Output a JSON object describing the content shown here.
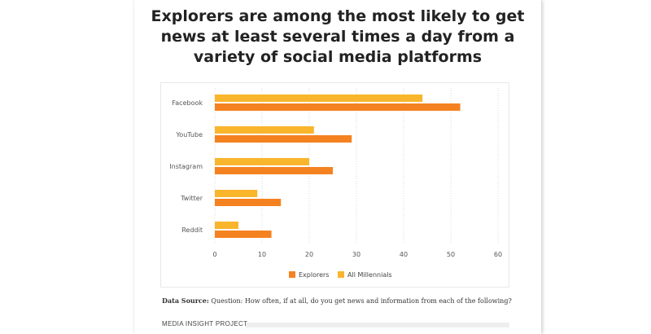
{
  "title_lines": [
    "Explorers are among the most likely to get",
    "news at least several times a day from a",
    "variety of social media platforms"
  ],
  "chart_data": {
    "type": "bar",
    "orientation": "horizontal",
    "title": "Explorers are among the most likely to get news at least several times a day from a variety of social media platforms",
    "categories": [
      "Facebook",
      "YouTube",
      "Instagram",
      "Twitter",
      "Reddit"
    ],
    "series": [
      {
        "name": "All Millennials",
        "color": "#F9B52C",
        "values": [
          44,
          21,
          20,
          9,
          5
        ]
      },
      {
        "name": "Explorers",
        "color": "#F58220",
        "values": [
          52,
          29,
          25,
          14,
          12
        ]
      }
    ],
    "xlim": [
      0,
      60
    ],
    "xticks": [
      0,
      10,
      20,
      30,
      40,
      50,
      60
    ],
    "grid": "vertical dotted",
    "legend": "bottom-center",
    "legend_order": [
      "Explorers",
      "All Millennials"
    ],
    "xlabel": "",
    "ylabel": ""
  },
  "source": {
    "label": "Data Source:",
    "text": "Question: How often, if at all, do you get news and information from each of the following?"
  },
  "footer": {
    "label": "MEDIA INSIGHT PROJECT"
  }
}
